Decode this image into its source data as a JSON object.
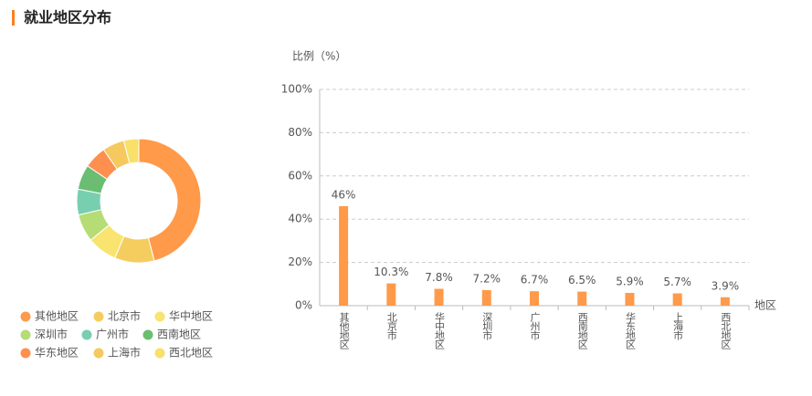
{
  "header": {
    "title": "就业地区分布"
  },
  "chart_data": [
    {
      "type": "pie",
      "categories": [
        "其他地区",
        "北京市",
        "华中地区",
        "深圳市",
        "广州市",
        "西南地区",
        "华东地区",
        "上海市",
        "西北地区"
      ],
      "values": [
        46,
        10.3,
        7.8,
        7.2,
        6.7,
        6.5,
        5.9,
        5.7,
        3.9
      ],
      "colors": [
        "#ff9a4a",
        "#f5cd5f",
        "#f8e46e",
        "#b5dc75",
        "#78cfb0",
        "#6bbd72",
        "#ff8f4f",
        "#f5c960",
        "#f8e06a"
      ]
    },
    {
      "type": "bar",
      "y_label": "比例（%）",
      "x_label": "地区",
      "categories": [
        "其他地区",
        "北京市",
        "华中地区",
        "深圳市",
        "广州市",
        "西南地区",
        "华东地区",
        "上海市",
        "西北地区"
      ],
      "values": [
        46,
        10.3,
        7.8,
        7.2,
        6.7,
        6.5,
        5.9,
        5.7,
        3.9
      ],
      "value_labels": [
        "46%",
        "10.3%",
        "7.8%",
        "7.2%",
        "6.7%",
        "6.5%",
        "5.9%",
        "5.7%",
        "3.9%"
      ],
      "color": "#ff9a4a",
      "ylim": [
        0,
        100
      ],
      "yticks": [
        {
          "value": 0,
          "label": "0%"
        },
        {
          "value": 20,
          "label": "20%"
        },
        {
          "value": 40,
          "label": "40%"
        },
        {
          "value": 60,
          "label": "60%"
        },
        {
          "value": 80,
          "label": "80%"
        },
        {
          "value": 100,
          "label": "100%"
        }
      ],
      "grid": true
    }
  ]
}
